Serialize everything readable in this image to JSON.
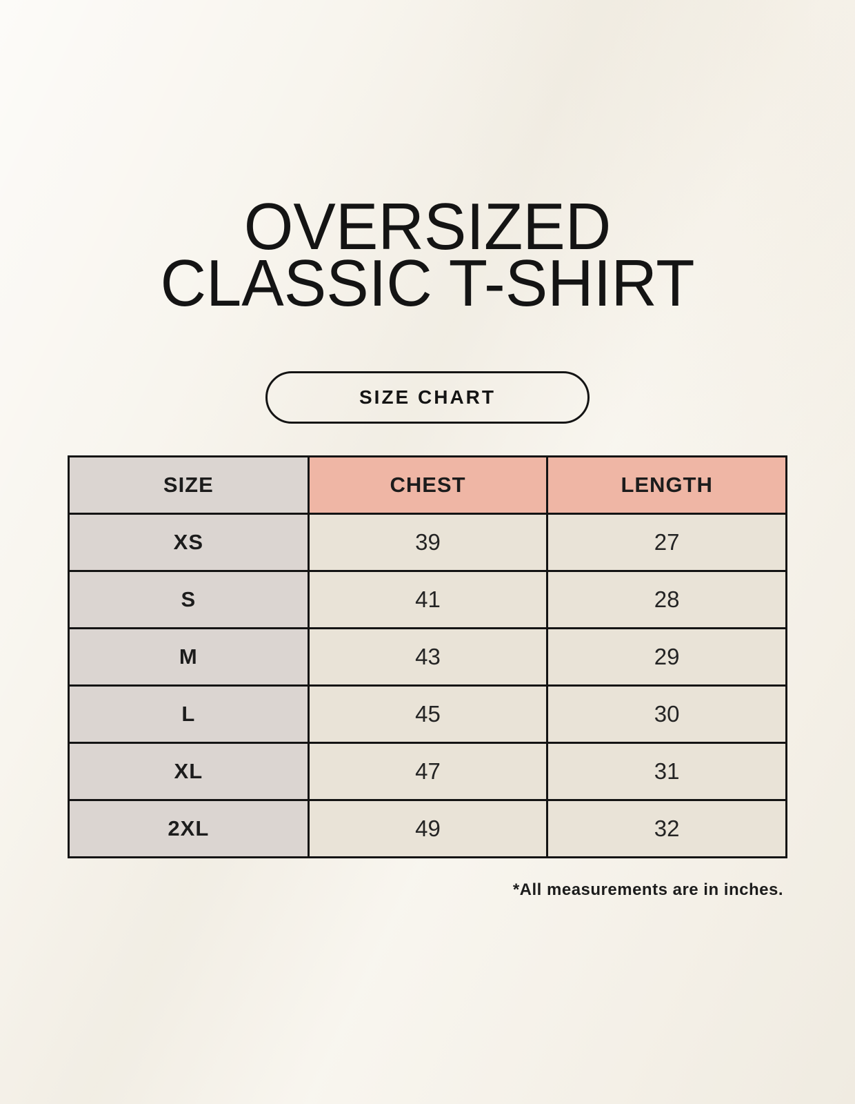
{
  "page": {
    "title_line1": "OVERSIZED",
    "title_line2": "CLASSIC T-SHIRT",
    "size_chart_button_label": "SIZE CHART",
    "footnote": "*All measurements are in inches."
  },
  "colors": {
    "background": "#f8f5ee",
    "size_column_bg": "#dbd5d1",
    "measure_header_bg": "#efb6a5",
    "data_cell_bg": "#e9e3d7",
    "border": "#141414",
    "text": "#1c1c1c"
  },
  "table": {
    "columns": [
      {
        "label": "SIZE"
      },
      {
        "label": "CHEST"
      },
      {
        "label": "LENGTH"
      }
    ],
    "rows": [
      {
        "size": "XS",
        "chest": "39",
        "length": "27"
      },
      {
        "size": "S",
        "chest": "41",
        "length": "28"
      },
      {
        "size": "M",
        "chest": "43",
        "length": "29"
      },
      {
        "size": "L",
        "chest": "45",
        "length": "30"
      },
      {
        "size": "XL",
        "chest": "47",
        "length": "31"
      },
      {
        "size": "2XL",
        "chest": "49",
        "length": "32"
      }
    ]
  },
  "chart_data": {
    "type": "table",
    "title": "OVERSIZED CLASSIC T-SHIRT",
    "subtitle": "SIZE CHART",
    "columns": [
      "SIZE",
      "CHEST",
      "LENGTH"
    ],
    "rows": [
      [
        "XS",
        39,
        27
      ],
      [
        "S",
        41,
        28
      ],
      [
        "M",
        43,
        29
      ],
      [
        "L",
        45,
        30
      ],
      [
        "XL",
        47,
        31
      ],
      [
        "2XL",
        49,
        32
      ]
    ],
    "units": "inches",
    "footnote": "*All measurements are in inches."
  }
}
